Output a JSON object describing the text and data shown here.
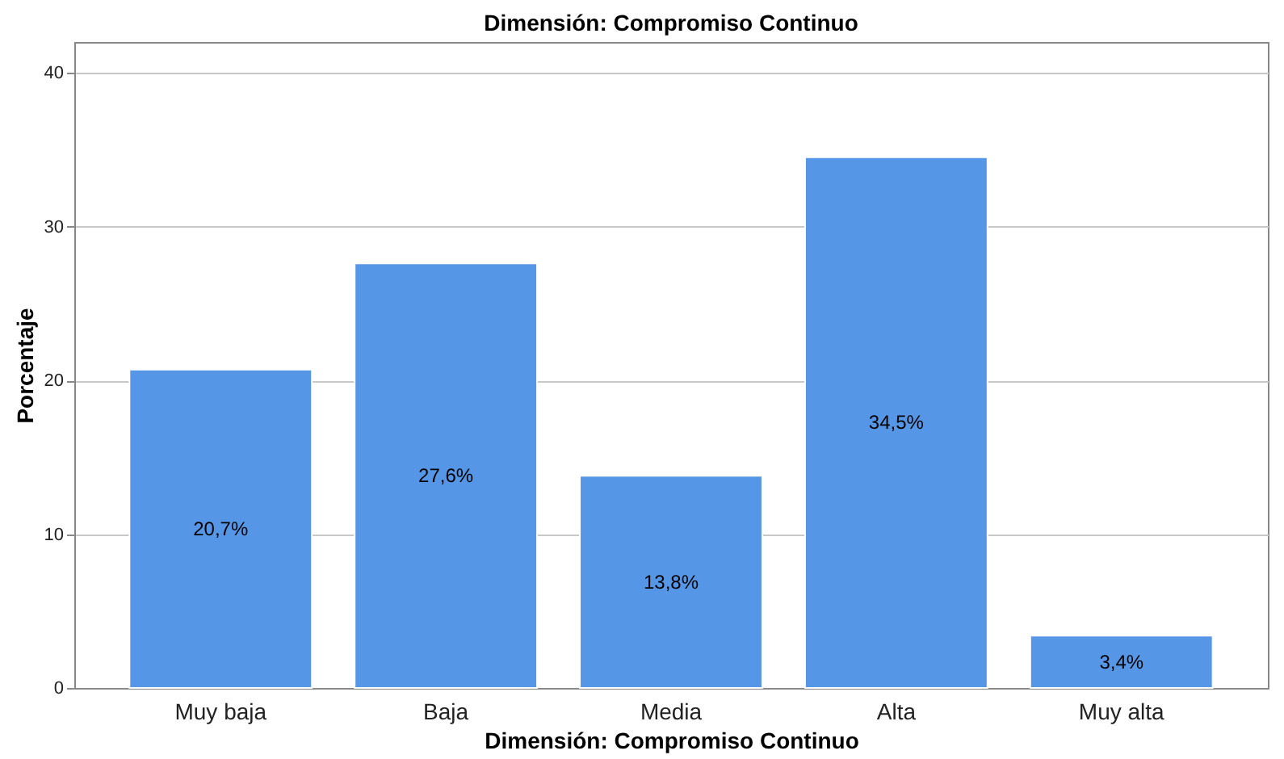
{
  "chart_data": {
    "type": "bar",
    "title": "Dimensión: Compromiso Continuo",
    "xlabel": "Dimensión: Compromiso Continuo",
    "ylabel": "Porcentaje",
    "categories": [
      "Muy baja",
      "Baja",
      "Media",
      "Alta",
      "Muy alta"
    ],
    "values": [
      20.7,
      27.6,
      13.8,
      34.5,
      3.4
    ],
    "value_labels": [
      "20,7%",
      "27,6%",
      "13,8%",
      "34,5%",
      "3,4%"
    ],
    "color": "#5596e6",
    "ylim": [
      0,
      42
    ],
    "yticks": [
      0,
      10,
      20,
      30,
      40
    ],
    "grid": "y"
  }
}
